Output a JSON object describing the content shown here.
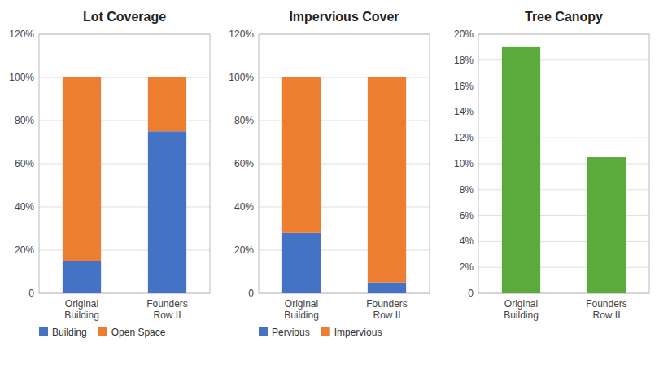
{
  "chart_data": [
    {
      "type": "bar",
      "title": "Lot Coverage",
      "stacked": true,
      "grid": true,
      "legend": "lower left",
      "categories": [
        "Original\nBuilding",
        "Founders\nRow II"
      ],
      "series": [
        {
          "name": "Building",
          "color": "#4472C4",
          "values": [
            0.15,
            0.75
          ]
        },
        {
          "name": "Open Space",
          "color": "#ED7D31",
          "values": [
            0.85,
            0.25
          ]
        }
      ],
      "ylim": [
        0,
        1.2
      ],
      "yticks": [
        0,
        {
          "value": 0.2,
          "label": "20%"
        },
        {
          "value": 0.4,
          "label": "40%"
        },
        {
          "value": 0.6,
          "label": "60%"
        },
        {
          "value": 0.8,
          "label": "80%"
        },
        {
          "value": 1.0,
          "label": "100%"
        },
        {
          "value": 1.2,
          "label": "120%"
        }
      ]
    },
    {
      "type": "bar",
      "title": "Impervious Cover",
      "stacked": true,
      "grid": true,
      "legend": "lower left",
      "categories": [
        "Original\nBuilding",
        "Founders\nRow II"
      ],
      "series": [
        {
          "name": "Pervious",
          "color": "#4472C4",
          "values": [
            0.28,
            0.05
          ]
        },
        {
          "name": "Impervious",
          "color": "#ED7D31",
          "values": [
            0.72,
            0.95
          ]
        }
      ],
      "ylim": [
        0,
        1.2
      ],
      "yticks": [
        0,
        {
          "value": 0.2,
          "label": "20%"
        },
        {
          "value": 0.4,
          "label": "40%"
        },
        {
          "value": 0.6,
          "label": "60%"
        },
        {
          "value": 0.8,
          "label": "80%"
        },
        {
          "value": 1.0,
          "label": "100%"
        },
        {
          "value": 1.2,
          "label": "120%"
        }
      ]
    },
    {
      "type": "bar",
      "title": "Tree Canopy",
      "grid": true,
      "categories": [
        "Original\nBuilding",
        "Founders\nRow II"
      ],
      "values": [
        0.19,
        0.105
      ],
      "color": "#5AAB3C",
      "ylim": [
        0,
        0.2
      ],
      "yticks": [
        0,
        {
          "value": 0.02,
          "label": "2%"
        },
        {
          "value": 0.04,
          "label": "4%"
        },
        {
          "value": 0.06,
          "label": "6%"
        },
        {
          "value": 0.08,
          "label": "8%"
        },
        {
          "value": 0.1,
          "label": "10%"
        },
        {
          "value": 0.12,
          "label": "12%"
        },
        {
          "value": 0.14,
          "label": "14%"
        },
        {
          "value": 0.16,
          "label": "16%"
        },
        {
          "value": 0.18,
          "label": "18%"
        },
        {
          "value": 0.2,
          "label": "20%"
        }
      ]
    }
  ]
}
